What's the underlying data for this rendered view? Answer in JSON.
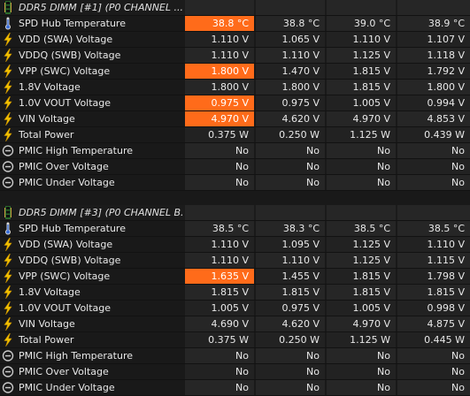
{
  "colors": {
    "highlight": "#ff6b1a",
    "bolt": "#f2c200"
  },
  "sections": [
    {
      "title": "DDR5 DIMM [#1] (P0 CHANNEL ...",
      "rows": [
        {
          "label": "SPD Hub Temperature",
          "icon": "thermometer-icon",
          "v": [
            "38.8 °C",
            "38.8 °C",
            "39.0 °C",
            "38.9 °C"
          ],
          "hl": true
        },
        {
          "label": "VDD (SWA) Voltage",
          "icon": "bolt-icon",
          "v": [
            "1.110 V",
            "1.065 V",
            "1.110 V",
            "1.107 V"
          ],
          "hl": false
        },
        {
          "label": "VDDQ (SWB) Voltage",
          "icon": "bolt-icon",
          "v": [
            "1.110 V",
            "1.110 V",
            "1.125 V",
            "1.118 V"
          ],
          "hl": false
        },
        {
          "label": "VPP (SWC) Voltage",
          "icon": "bolt-icon",
          "v": [
            "1.800 V",
            "1.470 V",
            "1.815 V",
            "1.792 V"
          ],
          "hl": true
        },
        {
          "label": "1.8V Voltage",
          "icon": "bolt-icon",
          "v": [
            "1.800 V",
            "1.800 V",
            "1.815 V",
            "1.800 V"
          ],
          "hl": false
        },
        {
          "label": "1.0V VOUT Voltage",
          "icon": "bolt-icon",
          "v": [
            "0.975 V",
            "0.975 V",
            "1.005 V",
            "0.994 V"
          ],
          "hl": true
        },
        {
          "label": "VIN Voltage",
          "icon": "bolt-icon",
          "v": [
            "4.970 V",
            "4.620 V",
            "4.970 V",
            "4.853 V"
          ],
          "hl": true
        },
        {
          "label": "Total Power",
          "icon": "bolt-icon",
          "v": [
            "0.375 W",
            "0.250 W",
            "1.125 W",
            "0.439 W"
          ],
          "hl": false
        },
        {
          "label": "PMIC High Temperature",
          "icon": "status-circle-icon",
          "v": [
            "No",
            "No",
            "No",
            "No"
          ],
          "hl": false
        },
        {
          "label": "PMIC Over Voltage",
          "icon": "status-circle-icon",
          "v": [
            "No",
            "No",
            "No",
            "No"
          ],
          "hl": false
        },
        {
          "label": "PMIC Under Voltage",
          "icon": "status-circle-icon",
          "v": [
            "No",
            "No",
            "No",
            "No"
          ],
          "hl": false
        }
      ]
    },
    {
      "title": "DDR5 DIMM [#3] (P0 CHANNEL B...",
      "rows": [
        {
          "label": "SPD Hub Temperature",
          "icon": "thermometer-icon",
          "v": [
            "38.5 °C",
            "38.3 °C",
            "38.5 °C",
            "38.5 °C"
          ],
          "hl": false
        },
        {
          "label": "VDD (SWA) Voltage",
          "icon": "bolt-icon",
          "v": [
            "1.110 V",
            "1.095 V",
            "1.125 V",
            "1.110 V"
          ],
          "hl": false
        },
        {
          "label": "VDDQ (SWB) Voltage",
          "icon": "bolt-icon",
          "v": [
            "1.110 V",
            "1.110 V",
            "1.125 V",
            "1.115 V"
          ],
          "hl": false
        },
        {
          "label": "VPP (SWC) Voltage",
          "icon": "bolt-icon",
          "v": [
            "1.635 V",
            "1.455 V",
            "1.815 V",
            "1.798 V"
          ],
          "hl": true
        },
        {
          "label": "1.8V Voltage",
          "icon": "bolt-icon",
          "v": [
            "1.815 V",
            "1.815 V",
            "1.815 V",
            "1.815 V"
          ],
          "hl": false
        },
        {
          "label": "1.0V VOUT Voltage",
          "icon": "bolt-icon",
          "v": [
            "1.005 V",
            "0.975 V",
            "1.005 V",
            "0.998 V"
          ],
          "hl": false
        },
        {
          "label": "VIN Voltage",
          "icon": "bolt-icon",
          "v": [
            "4.690 V",
            "4.620 V",
            "4.970 V",
            "4.875 V"
          ],
          "hl": false
        },
        {
          "label": "Total Power",
          "icon": "bolt-icon",
          "v": [
            "0.375 W",
            "0.250 W",
            "1.125 W",
            "0.445 W"
          ],
          "hl": false
        },
        {
          "label": "PMIC High Temperature",
          "icon": "status-circle-icon",
          "v": [
            "No",
            "No",
            "No",
            "No"
          ],
          "hl": false
        },
        {
          "label": "PMIC Over Voltage",
          "icon": "status-circle-icon",
          "v": [
            "No",
            "No",
            "No",
            "No"
          ],
          "hl": false
        },
        {
          "label": "PMIC Under Voltage",
          "icon": "status-circle-icon",
          "v": [
            "No",
            "No",
            "No",
            "No"
          ],
          "hl": false
        }
      ]
    }
  ]
}
